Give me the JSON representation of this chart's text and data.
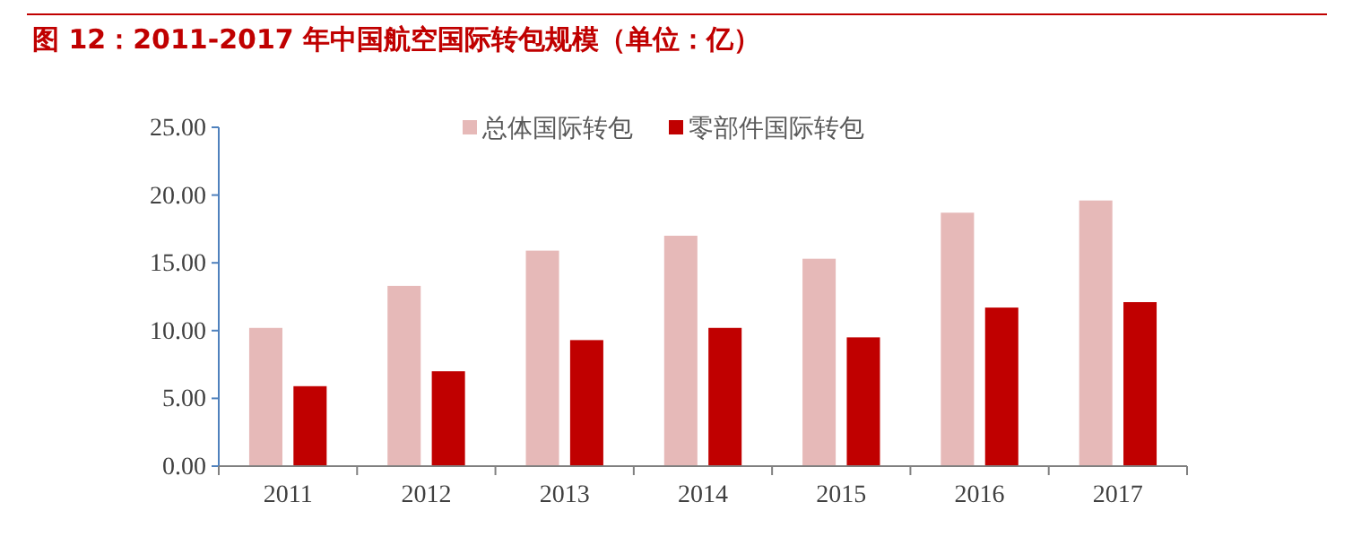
{
  "chart_data": {
    "type": "bar",
    "title": "图 12：2011-2017 年中国航空国际转包规模（单位：亿）",
    "categories": [
      "2011",
      "2012",
      "2013",
      "2014",
      "2015",
      "2016",
      "2017"
    ],
    "series": [
      {
        "name": "总体国际转包",
        "color": "#e6b9b8",
        "values": [
          10.2,
          13.3,
          15.9,
          17.0,
          15.3,
          18.7,
          19.6
        ]
      },
      {
        "name": "零部件国际转包",
        "color": "#c00000",
        "values": [
          5.9,
          7.0,
          9.3,
          10.2,
          9.5,
          11.7,
          12.1
        ]
      }
    ],
    "ylim": [
      0,
      25
    ],
    "yticks": [
      {
        "value": 0,
        "label": "0.00"
      },
      {
        "value": 5,
        "label": "5.00"
      },
      {
        "value": 10,
        "label": "10.00"
      },
      {
        "value": 15,
        "label": "15.00"
      },
      {
        "value": 20,
        "label": "20.00"
      },
      {
        "value": 25,
        "label": "25.00"
      }
    ],
    "grid": false,
    "legend": "top"
  }
}
